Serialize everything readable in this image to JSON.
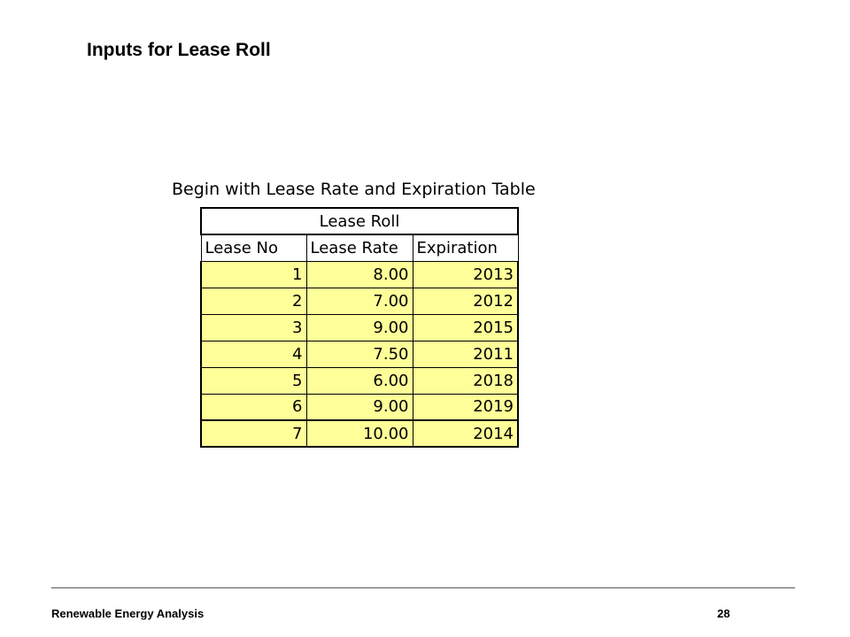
{
  "slide": {
    "title": "Inputs for Lease Roll"
  },
  "table": {
    "caption": "Begin with Lease Rate and Expiration Table",
    "title": "Lease Roll",
    "headers": [
      "Lease No",
      "Lease Rate",
      "Expiration"
    ],
    "rows": [
      [
        "1",
        "8.00",
        "2013"
      ],
      [
        "2",
        "7.00",
        "2012"
      ],
      [
        "3",
        "9.00",
        "2015"
      ],
      [
        "4",
        "7.50",
        "2011"
      ],
      [
        "5",
        "6.00",
        "2018"
      ],
      [
        "6",
        "9.00",
        "2019"
      ],
      [
        "7",
        "10.00",
        "2014"
      ]
    ],
    "input_cell_color": "#ffff99"
  },
  "footer": {
    "left": "Renewable Energy Analysis",
    "page_number": "28"
  }
}
